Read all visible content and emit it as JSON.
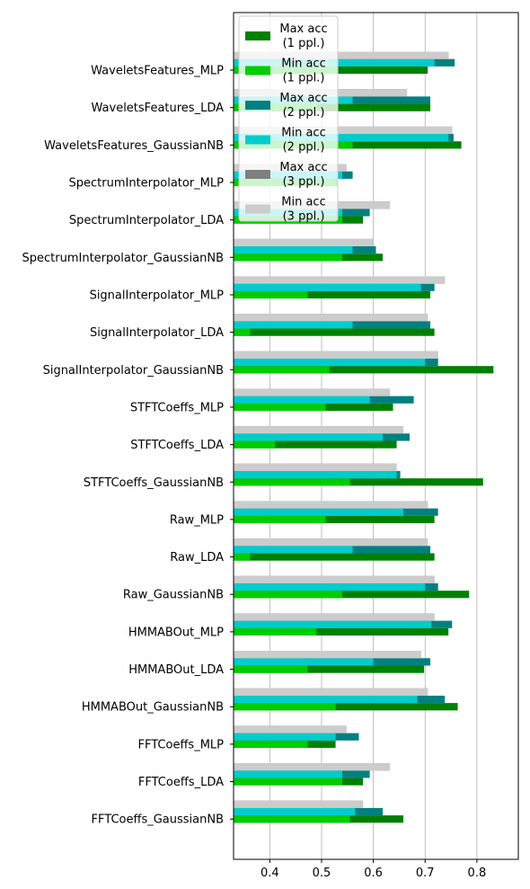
{
  "chart_data": {
    "type": "bar",
    "orientation": "horizontal",
    "grid": "x-axis gridlines on",
    "legend_placement": "top-left",
    "xlim": [
      0.33,
      0.88
    ],
    "x_ticks": [
      0.4,
      0.5,
      0.6,
      0.7,
      0.8
    ],
    "x_tick_labels": [
      "0.4",
      "0.5",
      "0.6",
      "0.7",
      "0.8"
    ],
    "categories": [
      "WaveletsFeatures_MLP",
      "WaveletsFeatures_LDA",
      "WaveletsFeatures_GaussianNB",
      "SpectrumInterpolator_MLP",
      "SpectrumInterpolator_LDA",
      "SpectrumInterpolator_GaussianNB",
      "SignalInterpolator_MLP",
      "SignalInterpolator_LDA",
      "SignalInterpolator_GaussianNB",
      "STFTCoeffs_MLP",
      "STFTCoeffs_LDA",
      "STFTCoeffs_GaussianNB",
      "Raw_MLP",
      "Raw_LDA",
      "Raw_GaussianNB",
      "HMMABOut_MLP",
      "HMMABOut_LDA",
      "HMMABOut_GaussianNB",
      "FFTCoeffs_MLP",
      "FFTCoeffs_LDA",
      "FFTCoeffs_GaussianNB"
    ],
    "series": [
      {
        "name": "Max acc\n(1 ppl.)",
        "color": "#008000",
        "values": [
          0.705,
          0.71,
          0.77,
          0.53,
          0.58,
          0.618,
          0.71,
          0.718,
          0.832,
          0.638,
          0.645,
          0.812,
          0.718,
          0.718,
          0.785,
          0.745,
          0.698,
          0.763,
          0.527,
          0.58,
          0.658
        ]
      },
      {
        "name": "Min acc\n(1 ppl.)",
        "color": "#00cc00",
        "values": [
          0.53,
          0.49,
          0.56,
          0.527,
          0.54,
          0.54,
          0.473,
          0.362,
          0.515,
          0.508,
          0.41,
          0.555,
          0.508,
          0.362,
          0.54,
          0.49,
          0.473,
          0.527,
          0.473,
          0.54,
          0.555
        ]
      },
      {
        "name": "Max acc\n(2 ppl.)",
        "color": "#008080",
        "values": [
          0.757,
          0.71,
          0.755,
          0.56,
          0.593,
          0.605,
          0.718,
          0.71,
          0.725,
          0.678,
          0.67,
          0.652,
          0.725,
          0.71,
          0.725,
          0.752,
          0.71,
          0.738,
          0.572,
          0.593,
          0.618
        ]
      },
      {
        "name": "Min acc\n(2 ppl.)",
        "color": "#00cccc",
        "values": [
          0.718,
          0.56,
          0.745,
          0.54,
          0.54,
          0.56,
          0.692,
          0.56,
          0.7,
          0.593,
          0.618,
          0.645,
          0.658,
          0.56,
          0.7,
          0.712,
          0.6,
          0.685,
          0.527,
          0.54,
          0.565
        ]
      },
      {
        "name": "Max acc\n(3 ppl.)",
        "color": "#808080",
        "values": [
          0.745,
          0.665,
          0.752,
          0.548,
          0.632,
          0.6,
          0.738,
          0.705,
          0.725,
          0.632,
          0.658,
          0.645,
          0.705,
          0.705,
          0.718,
          0.718,
          0.692,
          0.705,
          0.548,
          0.632,
          0.58
        ]
      },
      {
        "name": "Min acc\n(3 ppl.)",
        "color": "#cccccc",
        "values": [
          0.745,
          0.665,
          0.752,
          0.548,
          0.632,
          0.6,
          0.738,
          0.705,
          0.725,
          0.632,
          0.658,
          0.645,
          0.705,
          0.705,
          0.718,
          0.718,
          0.692,
          0.705,
          0.548,
          0.632,
          0.58
        ]
      }
    ]
  }
}
